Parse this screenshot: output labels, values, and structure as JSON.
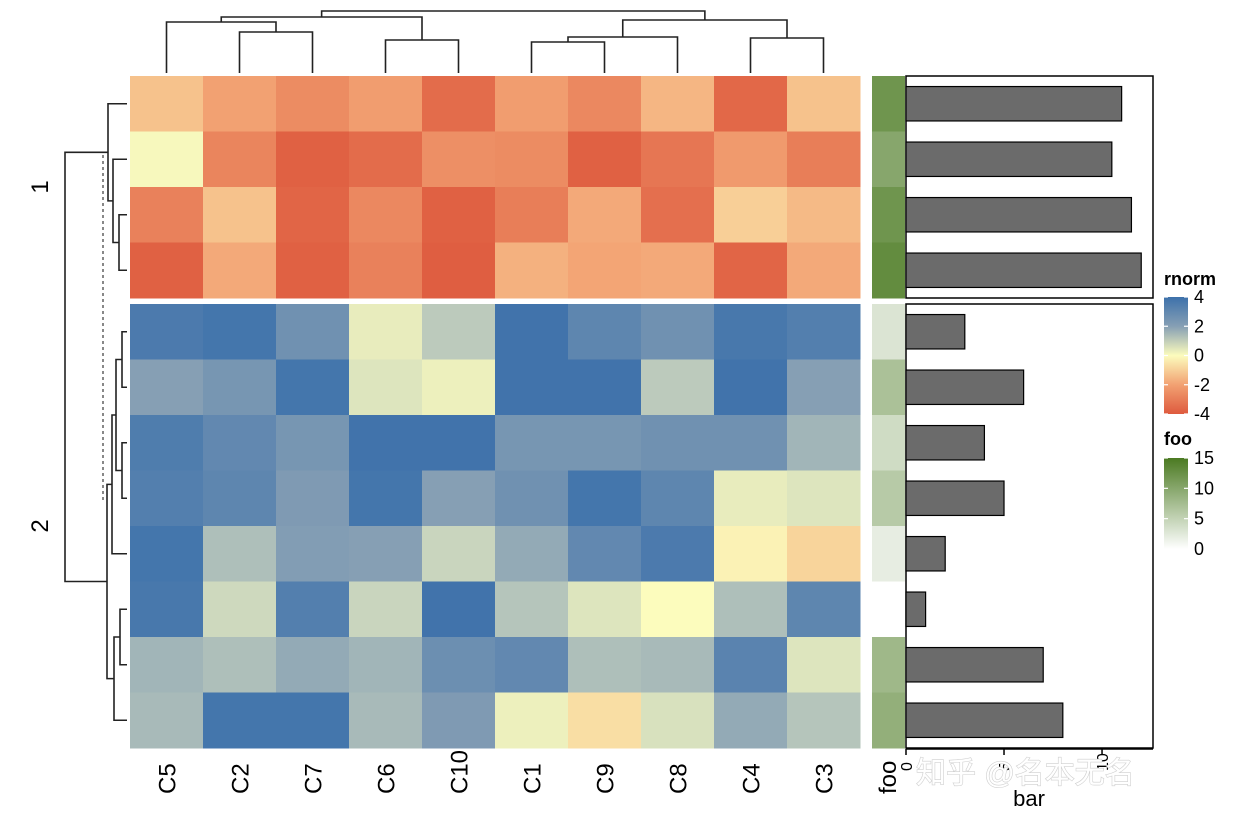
{
  "chart_data": {
    "type": "heatmap",
    "columns": [
      "C5",
      "C2",
      "C7",
      "C6",
      "C10",
      "C1",
      "C9",
      "C8",
      "C4",
      "C3"
    ],
    "row_slices": [
      {
        "label": "1",
        "n_rows": 4
      },
      {
        "label": "2",
        "n_rows": 8
      }
    ],
    "values": [
      [
        -1.2,
        -2.0,
        -2.6,
        -2.1,
        -3.5,
        -2.1,
        -2.7,
        -1.5,
        -3.6,
        -1.2
      ],
      [
        0.1,
        -2.8,
        -3.8,
        -3.5,
        -2.5,
        -2.6,
        -3.8,
        -3.2,
        -2.2,
        -3.0
      ],
      [
        -2.9,
        -1.2,
        -3.7,
        -2.7,
        -3.8,
        -3.0,
        -1.8,
        -3.4,
        -0.9,
        -1.4
      ],
      [
        -3.8,
        -1.8,
        -3.8,
        -2.9,
        -3.9,
        -1.6,
        -1.9,
        -1.8,
        -3.7,
        -1.8
      ],
      [
        3.6,
        3.8,
        2.6,
        0.4,
        1.2,
        3.9,
        3.1,
        2.6,
        3.7,
        3.4
      ],
      [
        2.0,
        2.4,
        3.8,
        0.6,
        0.3,
        3.9,
        3.9,
        1.2,
        3.9,
        2.0
      ],
      [
        3.5,
        3.0,
        2.4,
        3.9,
        3.9,
        2.4,
        2.4,
        2.6,
        2.6,
        1.6
      ],
      [
        3.4,
        3.1,
        2.2,
        3.8,
        2.0,
        2.6,
        3.8,
        3.1,
        0.4,
        0.6
      ],
      [
        3.8,
        1.4,
        2.1,
        2.0,
        1.0,
        1.8,
        3.0,
        3.6,
        -0.2,
        -0.8
      ],
      [
        3.7,
        0.9,
        3.4,
        1.0,
        3.9,
        1.3,
        0.6,
        0.0,
        1.4,
        3.1
      ],
      [
        1.6,
        1.4,
        1.8,
        1.6,
        2.7,
        3.0,
        1.4,
        1.5,
        3.2,
        0.6
      ],
      [
        1.5,
        3.8,
        3.8,
        1.5,
        2.2,
        0.3,
        -0.6,
        0.7,
        1.8,
        1.3
      ]
    ],
    "row_annotation_foo": [
      12,
      10,
      12,
      13,
      3,
      7,
      4,
      6,
      2,
      0,
      8,
      9
    ],
    "row_annotation_bar": [
      11.0,
      10.5,
      11.5,
      12.0,
      3.0,
      6.0,
      4.0,
      5.0,
      2.0,
      1.0,
      7.0,
      8.0
    ],
    "bar_axis": {
      "label": "bar",
      "ticks": [
        0,
        5,
        10
      ],
      "xlim": [
        0,
        12.6
      ]
    },
    "foo_label": "foo",
    "color_palette": {
      "rnorm": [
        {
          "v": -4,
          "c": "#de5a3e"
        },
        {
          "v": -2,
          "c": "#f2a172"
        },
        {
          "v": -1,
          "c": "#f7ca93"
        },
        {
          "v": 0,
          "c": "#fcfcbd"
        },
        {
          "v": 1,
          "c": "#c9d5be"
        },
        {
          "v": 2,
          "c": "#869fb4"
        },
        {
          "v": 4,
          "c": "#3d71ab"
        }
      ],
      "foo": [
        {
          "v": 0,
          "c": "#ffffff"
        },
        {
          "v": 15,
          "c": "#4b7a22"
        }
      ]
    },
    "legends": [
      {
        "title": "rnorm",
        "ticks": [
          "4",
          "2",
          "0",
          "-2",
          "-4"
        ]
      },
      {
        "title": "foo",
        "ticks": [
          "15",
          "10",
          "5",
          "0"
        ]
      }
    ],
    "watermark": "知乎 @名本无名"
  }
}
